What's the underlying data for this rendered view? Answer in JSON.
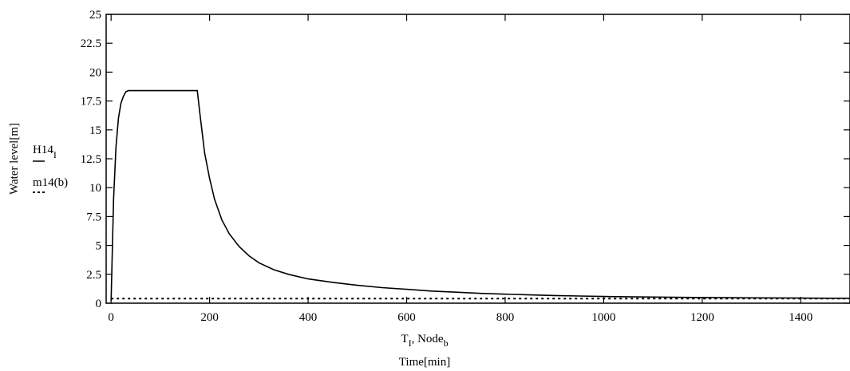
{
  "chart_data": {
    "type": "line",
    "xlim": [
      -10,
      1500
    ],
    "ylim": [
      0,
      25
    ],
    "x_ticks": [
      0,
      200,
      400,
      600,
      800,
      1000,
      1200,
      1400
    ],
    "y_ticks": [
      0,
      2.5,
      5,
      7.5,
      10,
      12.5,
      15,
      17.5,
      20,
      22.5,
      25
    ],
    "x_tick_labels": [
      "0",
      "200",
      "400",
      "600",
      "800",
      "1000",
      "1200",
      "1400"
    ],
    "y_tick_labels": [
      "0",
      "2.5",
      "5",
      "7.5",
      "10",
      "12.5",
      "15",
      "17.5",
      "20",
      "22.5",
      "25"
    ],
    "grid": false,
    "x_axis_vars": {
      "t_main": "T",
      "t_sub": "I",
      "sep": ",",
      "n_main": "Node",
      "n_sub": "b"
    },
    "xlabel": "Time[min]",
    "ylabel": "Water level[m]",
    "series": [
      {
        "name_main": "H14",
        "name_sub": "I",
        "style": "solid",
        "color": "#000000",
        "x": [
          0,
          5,
          10,
          15,
          20,
          25,
          30,
          35,
          40,
          60,
          100,
          140,
          175,
          180,
          190,
          200,
          210,
          225,
          240,
          260,
          280,
          300,
          330,
          360,
          400,
          450,
          500,
          550,
          600,
          650,
          700,
          750,
          800,
          850,
          900,
          950,
          1000,
          1100,
          1200,
          1300,
          1400,
          1500
        ],
        "y": [
          0.2,
          9.0,
          13.5,
          16.0,
          17.3,
          17.9,
          18.3,
          18.4,
          18.4,
          18.4,
          18.4,
          18.4,
          18.4,
          16.5,
          13.0,
          10.8,
          9.0,
          7.2,
          6.0,
          4.9,
          4.1,
          3.5,
          2.9,
          2.5,
          2.1,
          1.8,
          1.55,
          1.35,
          1.2,
          1.05,
          0.95,
          0.85,
          0.78,
          0.72,
          0.66,
          0.62,
          0.58,
          0.53,
          0.49,
          0.46,
          0.44,
          0.42
        ]
      },
      {
        "name": "m14(b)",
        "style": "dotted",
        "color": "#000000",
        "x": [
          0,
          1500
        ],
        "y": [
          0.4,
          0.4
        ]
      }
    ]
  }
}
